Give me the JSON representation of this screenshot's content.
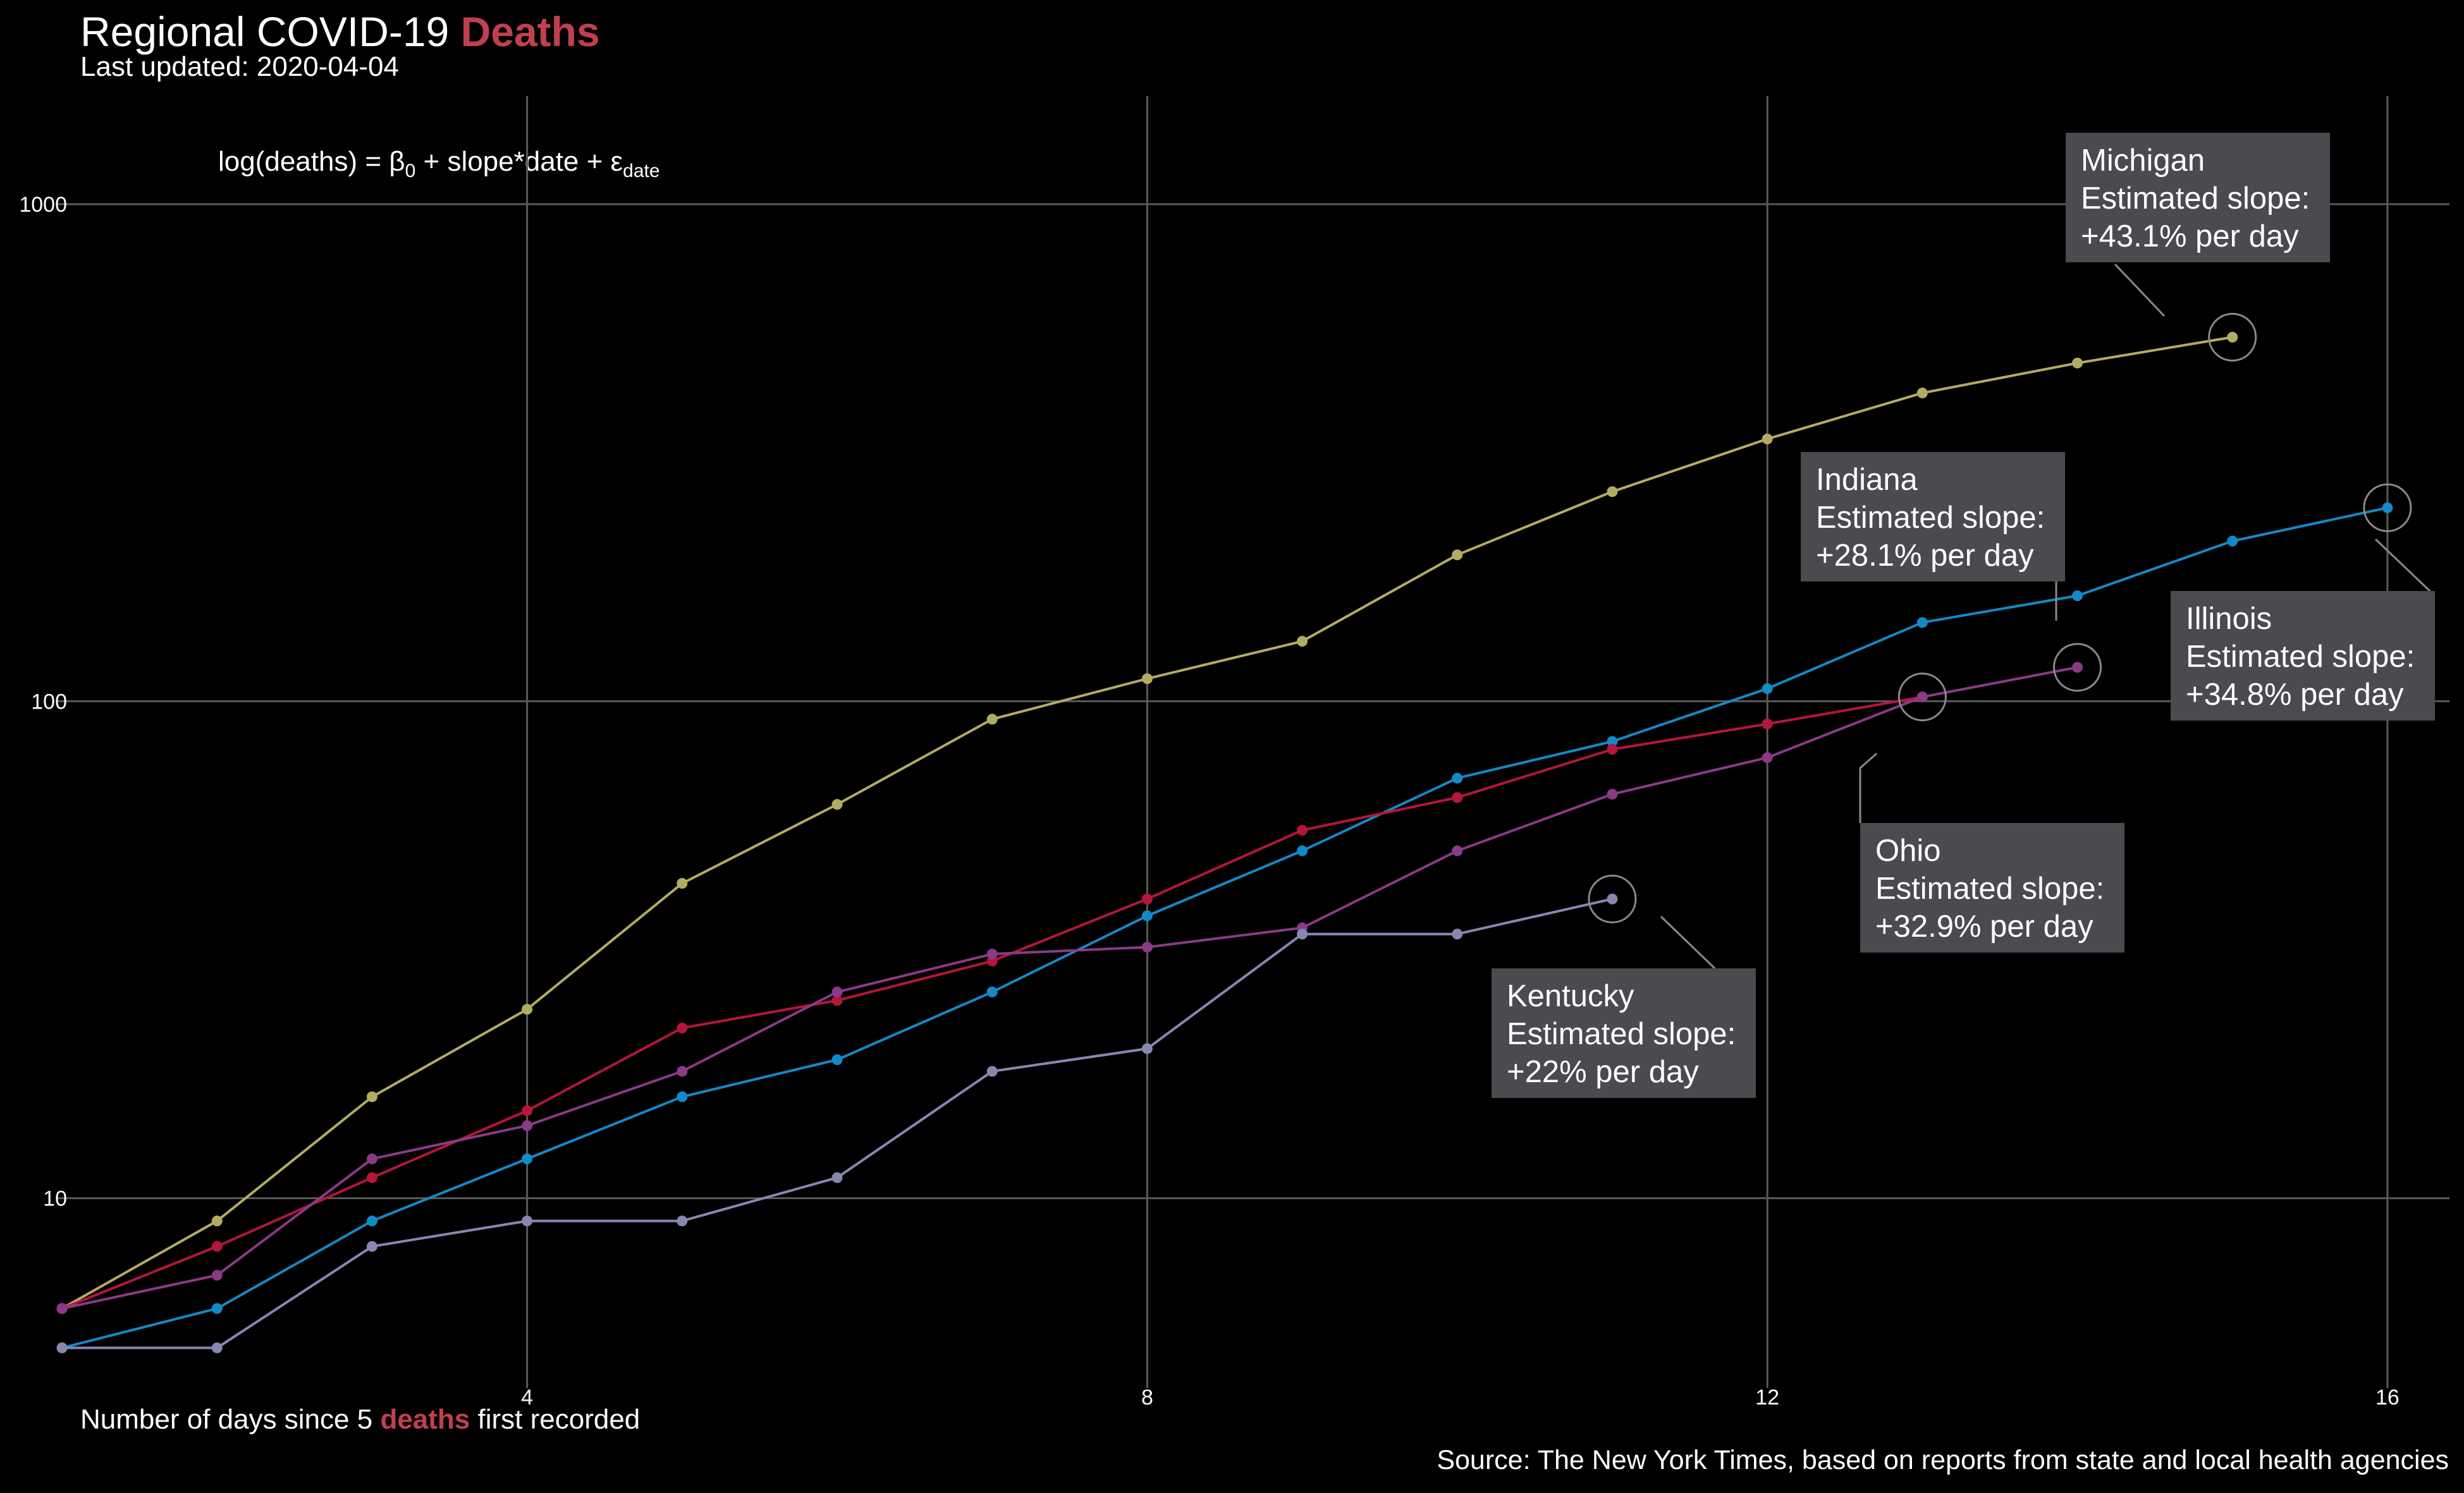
{
  "title": {
    "prefix": "Regional COVID-19 ",
    "highlight": "Deaths"
  },
  "subtitle": "Last updated: 2020-04-04",
  "formula": {
    "lhs": "log(deaths)",
    "eq": " = ",
    "beta": "β",
    "beta_sub": "0",
    "mid": " + slope*date + ",
    "eps": "ε",
    "eps_sub": "date"
  },
  "xlabel": {
    "prefix": "Number of days since 5 ",
    "highlight": "deaths",
    "suffix": " first recorded"
  },
  "source": "Source: The New York Times, based on reports from state and local health agencies",
  "colors": {
    "background": "#000000",
    "grid": "#5a5a5a",
    "highlight": "#c0404f",
    "label_box": "#4a4a4f",
    "leader": "#8a8a8a"
  },
  "chart_data": {
    "type": "line",
    "y_scale": "log10",
    "x_domain": [
      0.6,
      16.4
    ],
    "y_domain": [
      4.15,
      1650
    ],
    "x_ticks": [
      4,
      8,
      12,
      16
    ],
    "y_ticks": [
      10,
      100,
      1000
    ],
    "grid": true,
    "legend": "none",
    "series": [
      {
        "name": "Michigan",
        "color": "#b2ac62",
        "x": [
          1,
          2,
          3,
          4,
          5,
          6,
          7,
          8,
          9,
          10,
          11,
          12,
          13,
          14,
          15
        ],
        "y": [
          6,
          9,
          16,
          24,
          43,
          62,
          92,
          111,
          132,
          197,
          264,
          337,
          417,
          479,
          540
        ],
        "annotation": {
          "lines": [
            "Michigan",
            "Estimated slope:",
            "+43.1% per day"
          ]
        }
      },
      {
        "name": "Illinois",
        "color": "#1489c7",
        "x": [
          1,
          2,
          3,
          4,
          5,
          6,
          7,
          8,
          9,
          10,
          11,
          12,
          13,
          14,
          15,
          16
        ],
        "y": [
          5,
          6,
          9,
          12,
          16,
          19,
          26,
          37,
          50,
          70,
          83,
          106,
          144,
          163,
          210,
          245
        ],
        "annotation": {
          "lines": [
            "Illinois",
            "Estimated slope:",
            "+34.8% per day"
          ]
        }
      },
      {
        "name": "Indiana",
        "color": "#b5163c",
        "x": [
          1,
          2,
          3,
          4,
          5,
          6,
          7,
          8,
          9,
          10,
          11,
          12,
          13
        ],
        "y": [
          6,
          8,
          11,
          15,
          22,
          25,
          30,
          40,
          55,
          64,
          80,
          90,
          102
        ],
        "annotation": {
          "lines": [
            "Indiana",
            "Estimated slope:",
            "+28.1% per day"
          ]
        }
      },
      {
        "name": "Ohio",
        "color": "#8a3a87",
        "x": [
          1,
          2,
          3,
          4,
          5,
          6,
          7,
          8,
          9,
          10,
          11,
          12,
          13,
          14
        ],
        "y": [
          6,
          7,
          12,
          14,
          18,
          26,
          31,
          32,
          35,
          50,
          65,
          77,
          102,
          117
        ],
        "annotation": {
          "lines": [
            "Ohio",
            "Estimated slope:",
            "+32.9% per day"
          ]
        }
      },
      {
        "name": "Kentucky",
        "color": "#8787b0",
        "x": [
          1,
          2,
          3,
          4,
          5,
          6,
          7,
          8,
          9,
          10,
          11
        ],
        "y": [
          5,
          5,
          8,
          9,
          9,
          11,
          18,
          20,
          34,
          34,
          40
        ],
        "annotation": {
          "lines": [
            "Kentucky",
            "Estimated slope:",
            "+22% per day"
          ]
        }
      }
    ]
  }
}
